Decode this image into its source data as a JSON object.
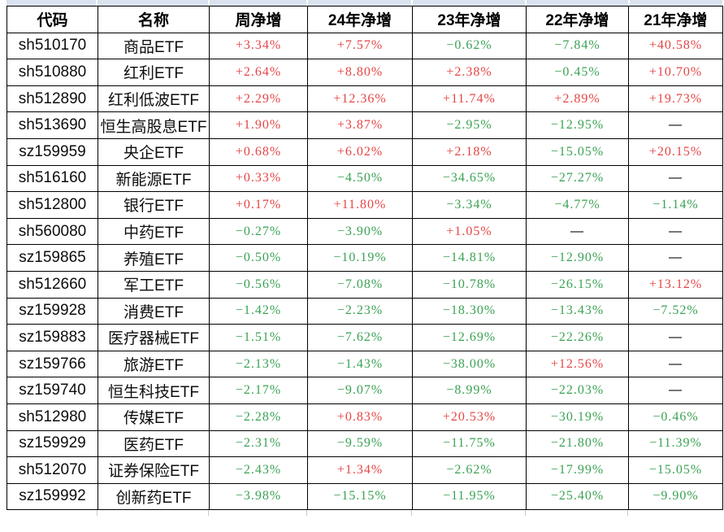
{
  "colors": {
    "positive": "#e54545",
    "negative": "#3aa254",
    "neutral": "#000000",
    "top_strip": "#d9e2ee",
    "border": "#000000"
  },
  "table": {
    "columns": [
      "代码",
      "名称",
      "周净增",
      "24年净增",
      "23年净增",
      "22年净增",
      "21年净增"
    ],
    "rows": [
      {
        "code": "sh510170",
        "name": "商品ETF",
        "values": [
          "+3.34%",
          "+7.57%",
          "−0.62%",
          "−7.84%",
          "+40.58%"
        ]
      },
      {
        "code": "sh510880",
        "name": "红利ETF",
        "values": [
          "+2.64%",
          "+8.80%",
          "+2.38%",
          "−0.45%",
          "+10.70%"
        ]
      },
      {
        "code": "sh512890",
        "name": "红利低波ETF",
        "values": [
          "+2.29%",
          "+12.36%",
          "+11.74%",
          "+2.89%",
          "+19.73%"
        ]
      },
      {
        "code": "sh513690",
        "name": "恒生高股息ETF",
        "values": [
          "+1.90%",
          "+3.87%",
          "−2.95%",
          "−12.95%",
          "—"
        ]
      },
      {
        "code": "sz159959",
        "name": "央企ETF",
        "values": [
          "+0.68%",
          "+6.02%",
          "+2.18%",
          "−15.05%",
          "+20.15%"
        ]
      },
      {
        "code": "sh516160",
        "name": "新能源ETF",
        "values": [
          "+0.33%",
          "−4.50%",
          "−34.65%",
          "−27.27%",
          "—"
        ]
      },
      {
        "code": "sh512800",
        "name": "银行ETF",
        "values": [
          "+0.17%",
          "+11.80%",
          "−3.34%",
          "−4.77%",
          "−1.14%"
        ]
      },
      {
        "code": "sh560080",
        "name": "中药ETF",
        "values": [
          "−0.27%",
          "−3.90%",
          "+1.05%",
          "—",
          "—"
        ]
      },
      {
        "code": "sz159865",
        "name": "养殖ETF",
        "values": [
          "−0.50%",
          "−10.19%",
          "−14.81%",
          "−12.90%",
          "—"
        ]
      },
      {
        "code": "sh512660",
        "name": "军工ETF",
        "values": [
          "−0.56%",
          "−7.08%",
          "−10.78%",
          "−26.15%",
          "+13.12%"
        ]
      },
      {
        "code": "sz159928",
        "name": "消费ETF",
        "values": [
          "−1.42%",
          "−2.23%",
          "−18.30%",
          "−13.43%",
          "−7.52%"
        ]
      },
      {
        "code": "sz159883",
        "name": "医疗器械ETF",
        "values": [
          "−1.51%",
          "−7.62%",
          "−12.69%",
          "−22.26%",
          "—"
        ]
      },
      {
        "code": "sz159766",
        "name": "旅游ETF",
        "values": [
          "−2.13%",
          "−1.43%",
          "−38.00%",
          "+12.56%",
          "—"
        ]
      },
      {
        "code": "sz159740",
        "name": "恒生科技ETF",
        "values": [
          "−2.17%",
          "−9.07%",
          "−8.99%",
          "−22.03%",
          "—"
        ]
      },
      {
        "code": "sh512980",
        "name": "传媒ETF",
        "values": [
          "−2.28%",
          "+0.83%",
          "+20.53%",
          "−30.19%",
          "−0.46%"
        ]
      },
      {
        "code": "sz159929",
        "name": "医药ETF",
        "values": [
          "−2.31%",
          "−9.59%",
          "−11.75%",
          "−21.80%",
          "−11.39%"
        ]
      },
      {
        "code": "sh512070",
        "name": "证券保险ETF",
        "values": [
          "−2.43%",
          "+1.34%",
          "−2.62%",
          "−17.99%",
          "−15.05%"
        ]
      },
      {
        "code": "sz159992",
        "name": "创新药ETF",
        "values": [
          "−3.98%",
          "−15.15%",
          "−11.95%",
          "−25.40%",
          "−9.90%"
        ]
      }
    ]
  }
}
